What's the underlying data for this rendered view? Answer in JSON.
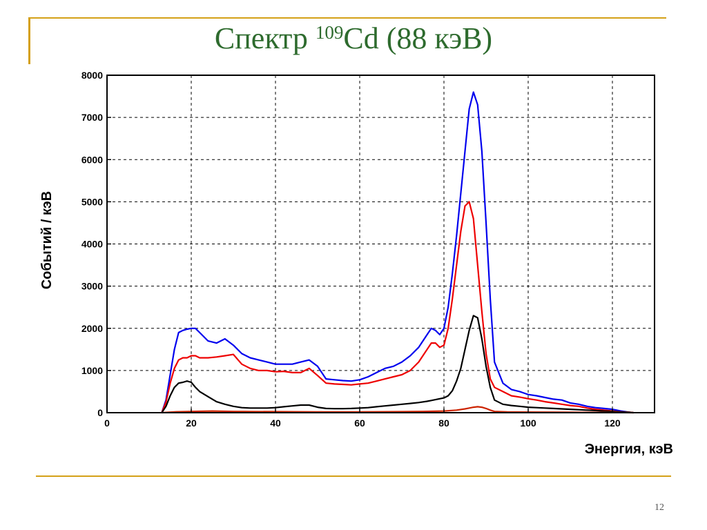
{
  "slide": {
    "title_prefix": "Спектр ",
    "title_superscript": "109",
    "title_suffix": "Cd (88 кэВ)",
    "page_number": "12"
  },
  "colors": {
    "frame": "#d4a017",
    "title": "#2e6b2e",
    "grid": "#000000"
  },
  "chart_data": {
    "type": "line",
    "xlabel": "Энергия, кэВ",
    "ylabel": "Событий / кэВ",
    "xlim": [
      0,
      130
    ],
    "ylim": [
      0,
      8000
    ],
    "x_ticks": [
      0,
      20,
      40,
      60,
      80,
      100,
      120
    ],
    "y_ticks": [
      0,
      1000,
      2000,
      3000,
      4000,
      5000,
      6000,
      7000,
      8000
    ],
    "grid": true,
    "legend": "none",
    "series": [
      {
        "color": "#0000ee",
        "x": [
          13,
          14,
          15,
          16,
          17,
          18,
          19,
          20,
          21,
          22,
          24,
          26,
          28,
          30,
          32,
          34,
          36,
          38,
          40,
          42,
          44,
          46,
          48,
          50,
          52,
          54,
          56,
          58,
          60,
          62,
          64,
          66,
          68,
          70,
          72,
          74,
          76,
          77,
          78,
          79,
          80,
          81,
          82,
          83,
          84,
          85,
          86,
          87,
          88,
          89,
          90,
          91,
          92,
          94,
          96,
          98,
          100,
          102,
          104,
          106,
          108,
          110,
          112,
          114,
          116,
          118,
          120,
          122,
          124,
          125
        ],
        "y": [
          0,
          300,
          900,
          1500,
          1900,
          1950,
          1980,
          2000,
          2000,
          1900,
          1700,
          1650,
          1750,
          1600,
          1400,
          1300,
          1250,
          1200,
          1150,
          1150,
          1150,
          1200,
          1250,
          1100,
          800,
          780,
          760,
          750,
          780,
          850,
          950,
          1050,
          1100,
          1200,
          1350,
          1550,
          1850,
          2000,
          1950,
          1850,
          2000,
          2500,
          3300,
          4200,
          5200,
          6200,
          7200,
          7600,
          7300,
          6200,
          4500,
          2700,
          1200,
          700,
          550,
          500,
          430,
          400,
          360,
          320,
          300,
          230,
          200,
          150,
          120,
          100,
          80,
          40,
          10,
          0
        ]
      },
      {
        "color": "#ee0000",
        "x": [
          13,
          14,
          15,
          16,
          17,
          18,
          19,
          20,
          21,
          22,
          24,
          26,
          28,
          30,
          32,
          34,
          36,
          38,
          40,
          42,
          44,
          46,
          48,
          50,
          52,
          54,
          56,
          58,
          60,
          62,
          64,
          66,
          68,
          70,
          72,
          74,
          76,
          77,
          78,
          79,
          80,
          81,
          82,
          83,
          84,
          85,
          86,
          87,
          88,
          89,
          90,
          91,
          92,
          94,
          96,
          98,
          100,
          102,
          104,
          106,
          108,
          110,
          112,
          114,
          116,
          118,
          120,
          122,
          124,
          125
        ],
        "y": [
          0,
          250,
          700,
          1050,
          1250,
          1300,
          1300,
          1350,
          1350,
          1300,
          1300,
          1320,
          1350,
          1380,
          1150,
          1050,
          1000,
          1000,
          970,
          980,
          950,
          950,
          1050,
          880,
          700,
          680,
          670,
          660,
          680,
          700,
          750,
          800,
          850,
          900,
          1000,
          1200,
          1500,
          1650,
          1650,
          1550,
          1600,
          2000,
          2700,
          3500,
          4300,
          4900,
          5000,
          4600,
          3500,
          2400,
          1400,
          800,
          600,
          500,
          400,
          370,
          330,
          300,
          260,
          230,
          200,
          170,
          150,
          110,
          80,
          60,
          40,
          20,
          10,
          0
        ]
      },
      {
        "color": "#000000",
        "x": [
          13,
          14,
          15,
          16,
          17,
          18,
          19,
          20,
          21,
          22,
          24,
          26,
          28,
          30,
          32,
          34,
          36,
          38,
          40,
          42,
          44,
          46,
          48,
          50,
          52,
          54,
          56,
          58,
          60,
          62,
          64,
          66,
          68,
          70,
          72,
          74,
          76,
          77,
          78,
          79,
          80,
          81,
          82,
          83,
          84,
          85,
          86,
          87,
          88,
          89,
          90,
          91,
          92,
          94,
          96,
          98,
          100,
          102,
          104,
          106,
          108,
          110,
          112,
          114,
          116,
          118,
          120,
          122,
          124,
          125
        ],
        "y": [
          0,
          150,
          400,
          600,
          700,
          720,
          750,
          720,
          600,
          500,
          380,
          260,
          200,
          150,
          120,
          110,
          110,
          110,
          120,
          140,
          160,
          180,
          180,
          130,
          100,
          95,
          95,
          100,
          110,
          120,
          140,
          160,
          180,
          200,
          220,
          240,
          270,
          290,
          310,
          330,
          350,
          400,
          520,
          750,
          1050,
          1500,
          1950,
          2300,
          2250,
          1750,
          1100,
          600,
          300,
          200,
          170,
          150,
          130,
          120,
          110,
          100,
          90,
          80,
          70,
          60,
          50,
          40,
          30,
          20,
          10,
          0
        ]
      },
      {
        "color": "#cc2200",
        "x": [
          13,
          16,
          20,
          25,
          30,
          40,
          50,
          60,
          70,
          75,
          80,
          83,
          85,
          86,
          87,
          88,
          89,
          90,
          91,
          92,
          95,
          100,
          110,
          120,
          125
        ],
        "y": [
          0,
          20,
          30,
          40,
          30,
          25,
          20,
          20,
          25,
          30,
          40,
          60,
          90,
          110,
          130,
          140,
          130,
          100,
          60,
          30,
          20,
          15,
          10,
          5,
          0
        ]
      }
    ]
  }
}
